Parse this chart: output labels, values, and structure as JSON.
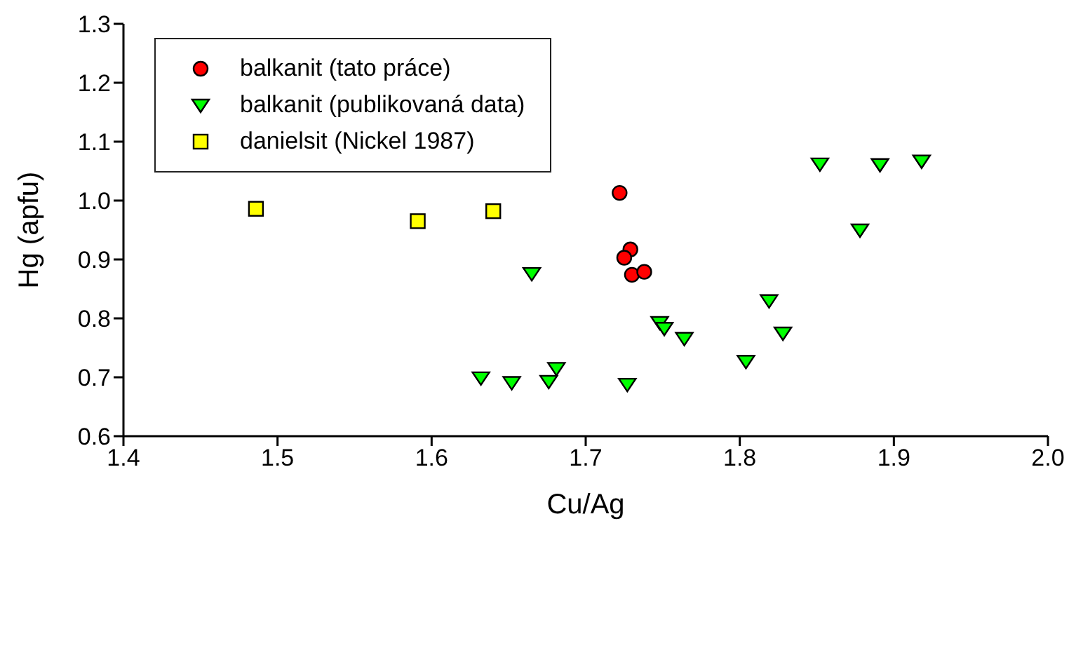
{
  "chart_data": {
    "type": "scatter",
    "xlabel": "Cu/Ag",
    "ylabel": "Hg (apfu)",
    "xlim": [
      1.4,
      2.0
    ],
    "xticks": [
      {
        "value": 1.4,
        "label": "1.4"
      },
      {
        "value": 1.5,
        "label": "1.5"
      },
      {
        "value": 1.6,
        "label": "1.6"
      },
      {
        "value": 1.7,
        "label": "1.7"
      },
      {
        "value": 1.8,
        "label": "1.8"
      },
      {
        "value": 1.9,
        "label": "1.9"
      },
      {
        "value": 2.0,
        "label": "2.0"
      }
    ],
    "ylim": [
      0.6,
      1.3
    ],
    "yticks": [
      {
        "value": 0.6,
        "label": "0.6"
      },
      {
        "value": 0.7,
        "label": "0.7"
      },
      {
        "value": 0.8,
        "label": "0.8"
      },
      {
        "value": 0.9,
        "label": "0.9"
      },
      {
        "value": 1.0,
        "label": "1.0"
      },
      {
        "value": 1.1,
        "label": "1.1"
      },
      {
        "value": 1.2,
        "label": "1.2"
      },
      {
        "value": 1.3,
        "label": "1.3"
      }
    ],
    "grid": false,
    "legend": "top left",
    "series": [
      {
        "name": "balkanit (tato práce)",
        "color": "#ff0000",
        "marker": "circle",
        "x": [
          1.722,
          1.729,
          1.725,
          1.73,
          1.738
        ],
        "values": [
          1.013,
          0.917,
          0.903,
          0.874,
          0.879
        ]
      },
      {
        "name": "balkanit (publikovaná data)",
        "color": "#00ff00",
        "marker": "triangle",
        "x": [
          1.665,
          1.632,
          1.652,
          1.676,
          1.681,
          1.852,
          1.891,
          1.918,
          1.878,
          1.819,
          1.748,
          1.751,
          1.764,
          1.828,
          1.804,
          1.727
        ],
        "values": [
          0.876,
          0.699,
          0.691,
          0.693,
          0.715,
          1.062,
          1.061,
          1.067,
          0.95,
          0.83,
          0.793,
          0.783,
          0.766,
          0.775,
          0.727,
          0.688
        ]
      },
      {
        "name": "danielsit (Nickel 1987)",
        "color": "#ffff00",
        "marker": "square",
        "x": [
          1.486,
          1.591,
          1.64
        ],
        "values": [
          0.986,
          0.965,
          0.982
        ]
      }
    ]
  }
}
